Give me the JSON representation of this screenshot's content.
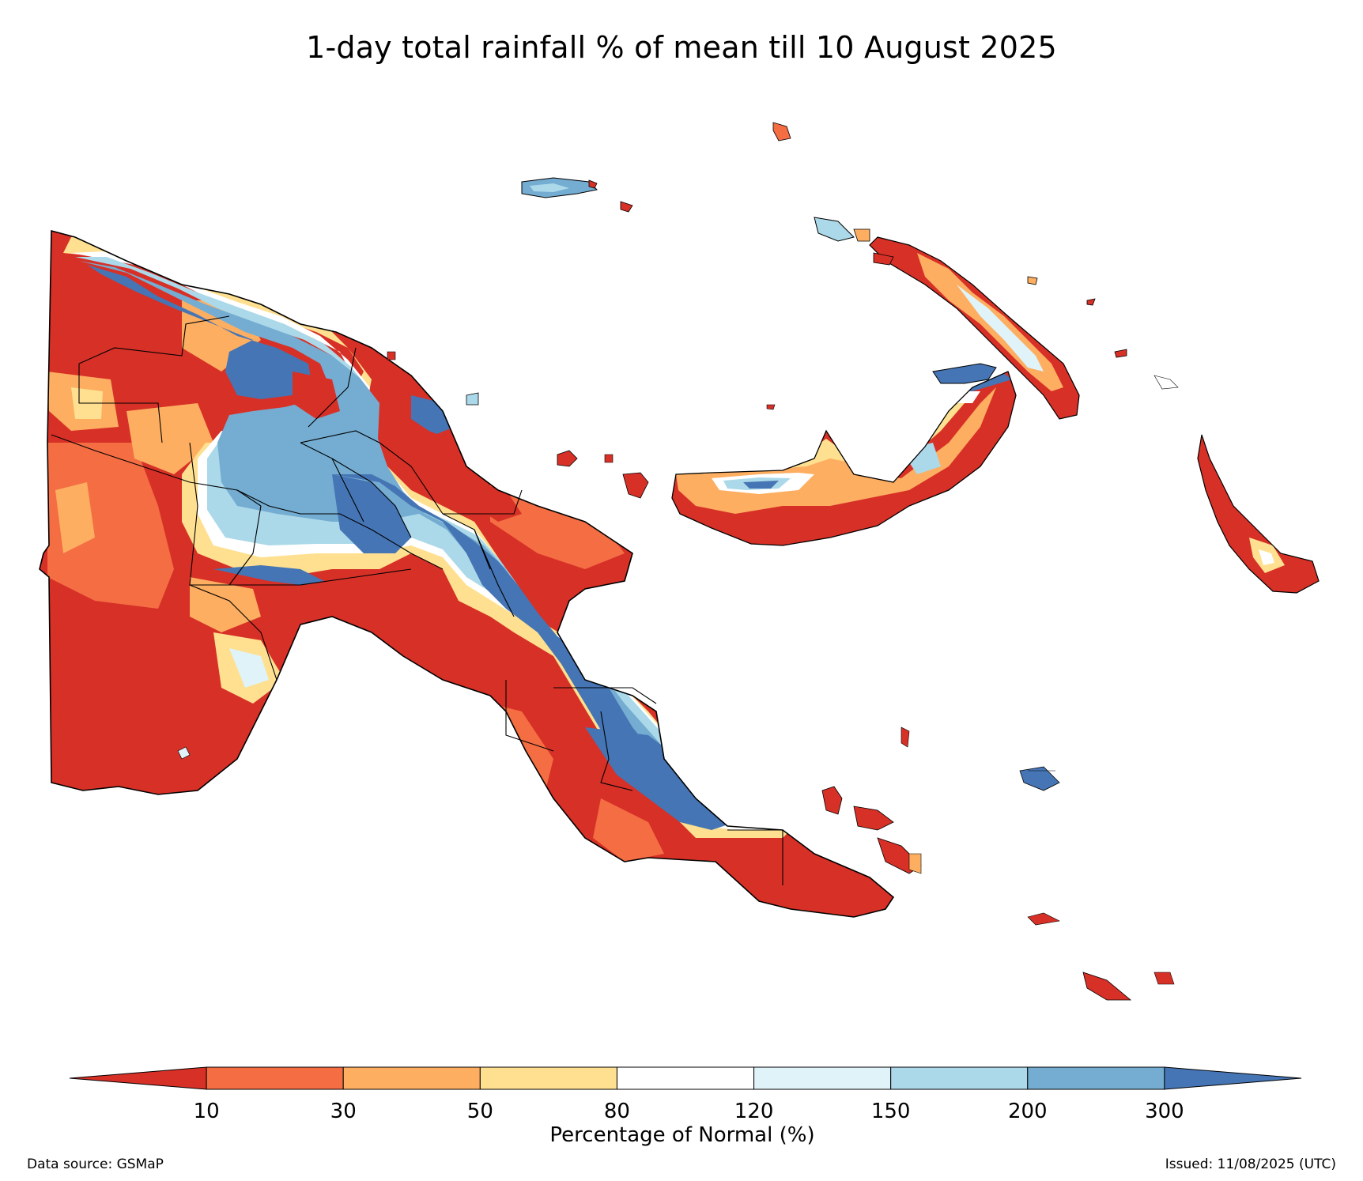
{
  "title": "1-day total rainfall % of mean till 10 August 2025",
  "legend": {
    "label": "Percentage of Normal (%)",
    "ticks": [
      "10",
      "30",
      "50",
      "80",
      "120",
      "150",
      "200",
      "300"
    ],
    "colors": [
      "#d73027",
      "#f46d43",
      "#fdae61",
      "#fee090",
      "#ffffff",
      "#e0f3f8",
      "#abd9e9",
      "#74add1",
      "#4575b4"
    ]
  },
  "footer": {
    "source": "Data source: GSMaP",
    "issued": "Issued: 11/08/2025 (UTC)"
  }
}
